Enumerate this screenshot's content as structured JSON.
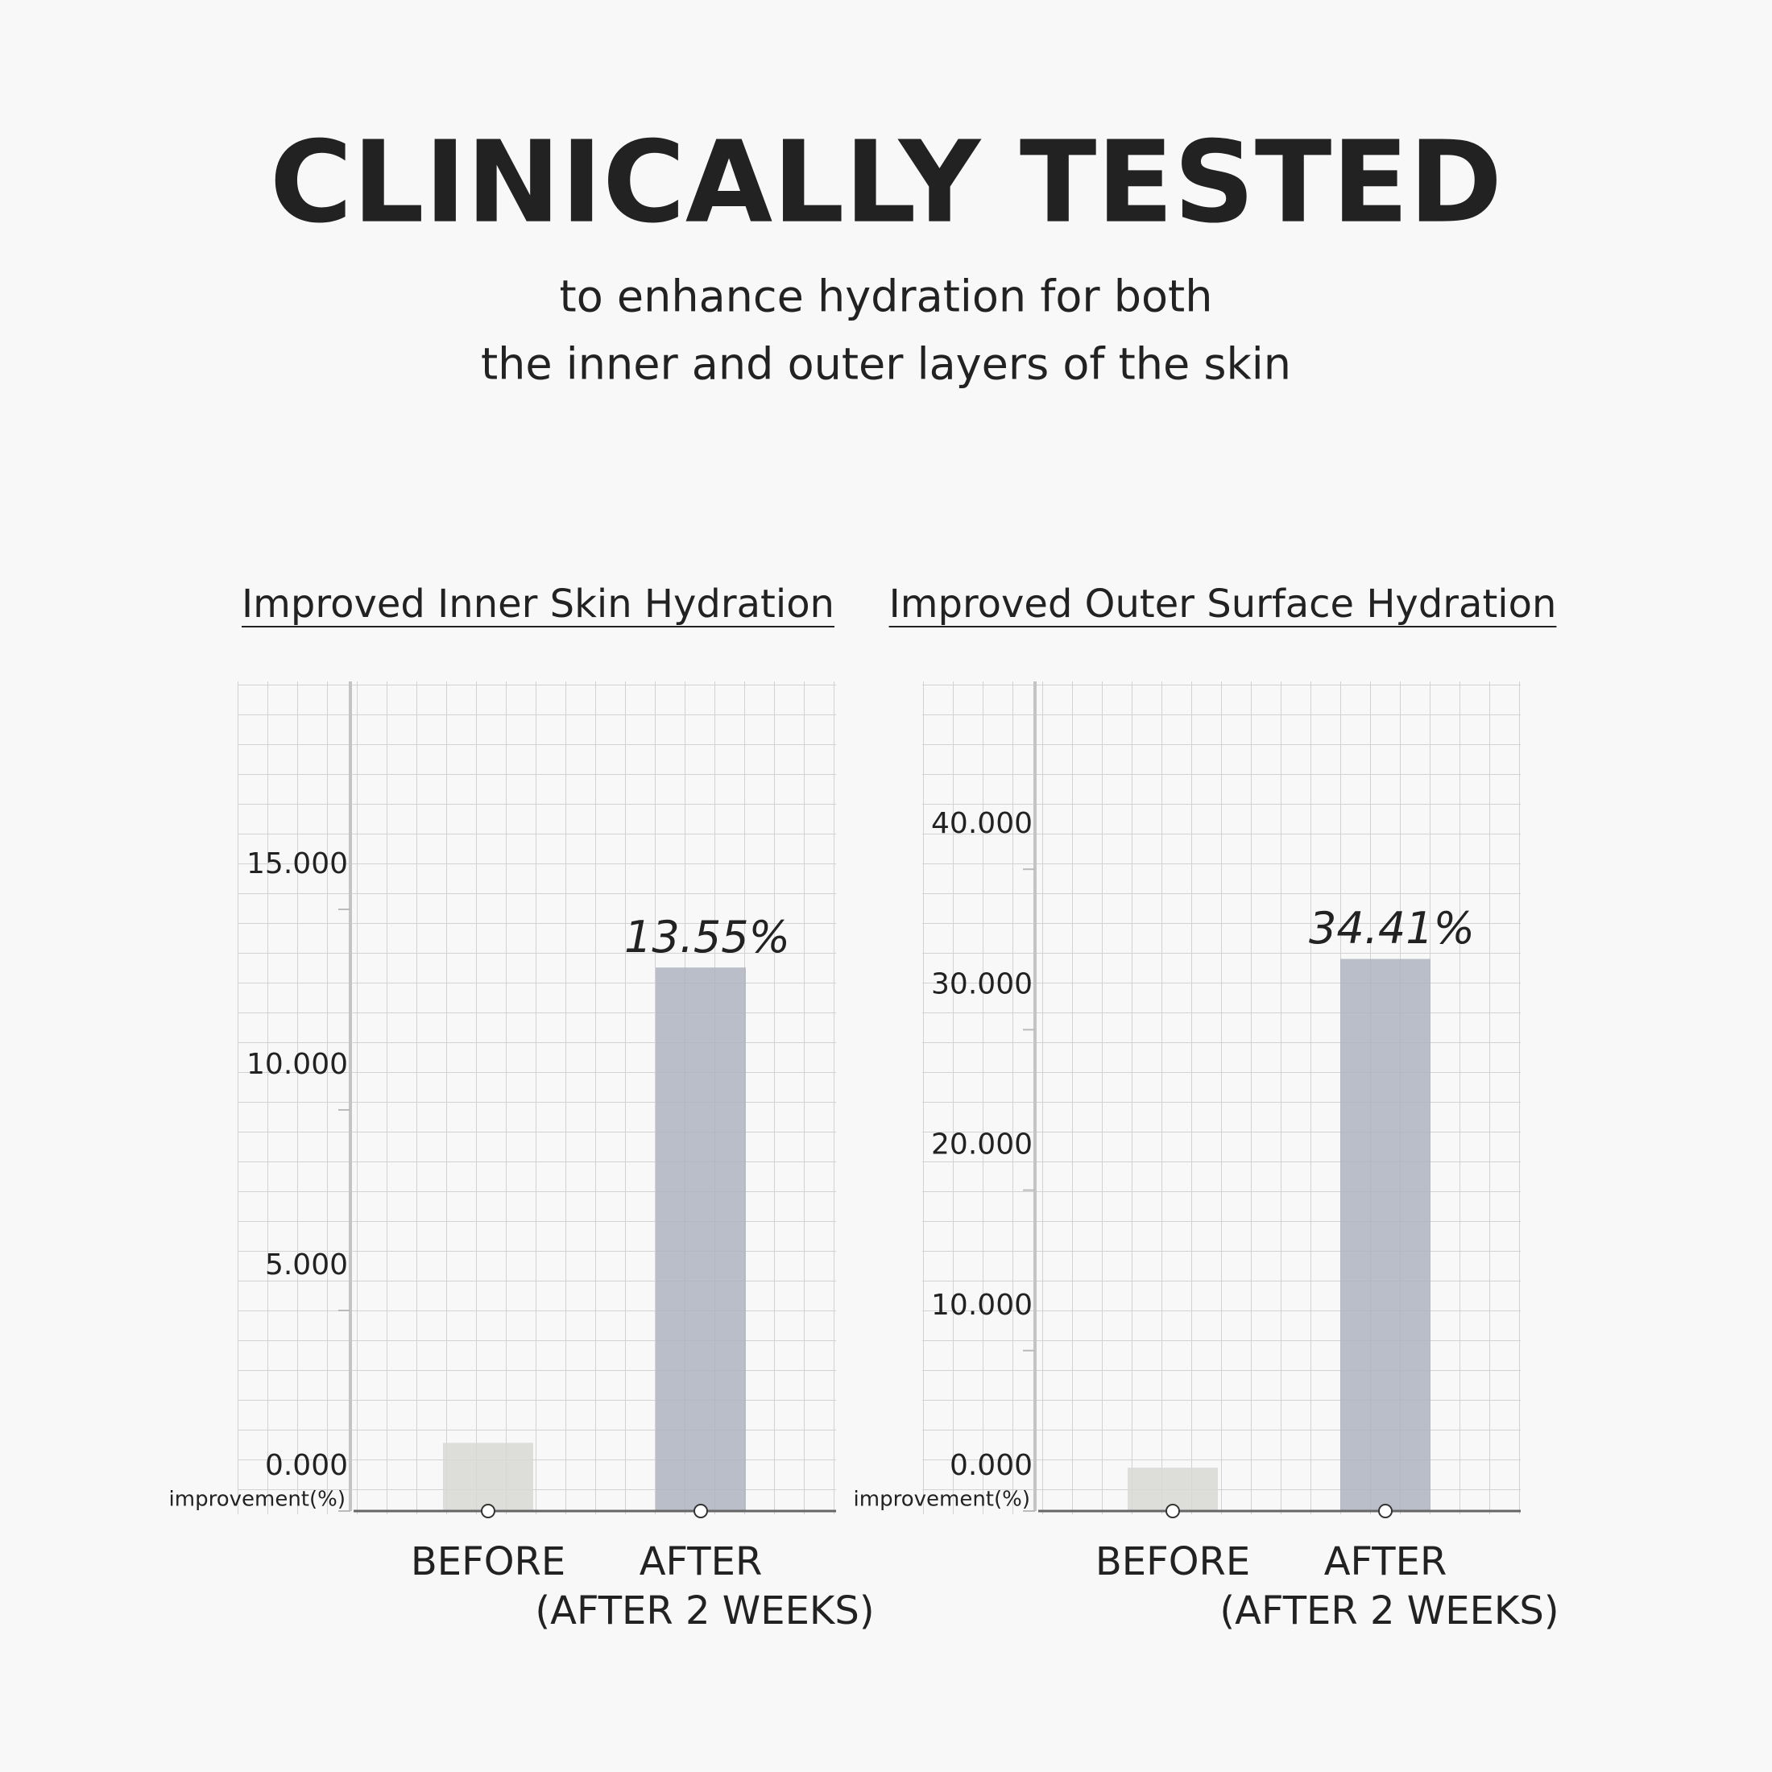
{
  "header": {
    "title": "CLINICALLY TESTED",
    "subtitle": [
      "to enhance hydration for both",
      "the inner and outer layers of the skin"
    ]
  },
  "chart_data": [
    {
      "type": "bar",
      "title": "Improved Inner Skin Hydration",
      "y_label": "improvement(%)",
      "categories": [
        "BEFORE",
        "AFTER"
      ],
      "category_note": "(AFTER 2 WEEKS)",
      "values": [
        1.7,
        13.55
      ],
      "value_labels": [
        null,
        "13.55%"
      ],
      "colors": [
        "#d8d8d3",
        "#aeb4c0"
      ],
      "ylim": [
        0,
        20
      ],
      "yticks": [
        {
          "value": 0,
          "label": "0.000"
        },
        {
          "value": 5,
          "label": "5.000"
        },
        {
          "value": 10,
          "label": "10.000"
        },
        {
          "value": 15,
          "label": "15.000"
        }
      ]
    },
    {
      "type": "bar",
      "title": "Improved Outer Surface Hydration",
      "y_label": "improvement(%)",
      "categories": [
        "BEFORE",
        "AFTER"
      ],
      "category_note": "(AFTER 2 WEEKS)",
      "values": [
        2.7,
        34.41
      ],
      "value_labels": [
        null,
        "34.41%"
      ],
      "colors": [
        "#d8d8d3",
        "#aeb4c0"
      ],
      "ylim": [
        0,
        50
      ],
      "yticks": [
        {
          "value": 0,
          "label": "0.000"
        },
        {
          "value": 10,
          "label": "10.000"
        },
        {
          "value": 20,
          "label": "20.000"
        },
        {
          "value": 30,
          "label": "30.000"
        },
        {
          "value": 40,
          "label": "40.000"
        }
      ]
    }
  ]
}
